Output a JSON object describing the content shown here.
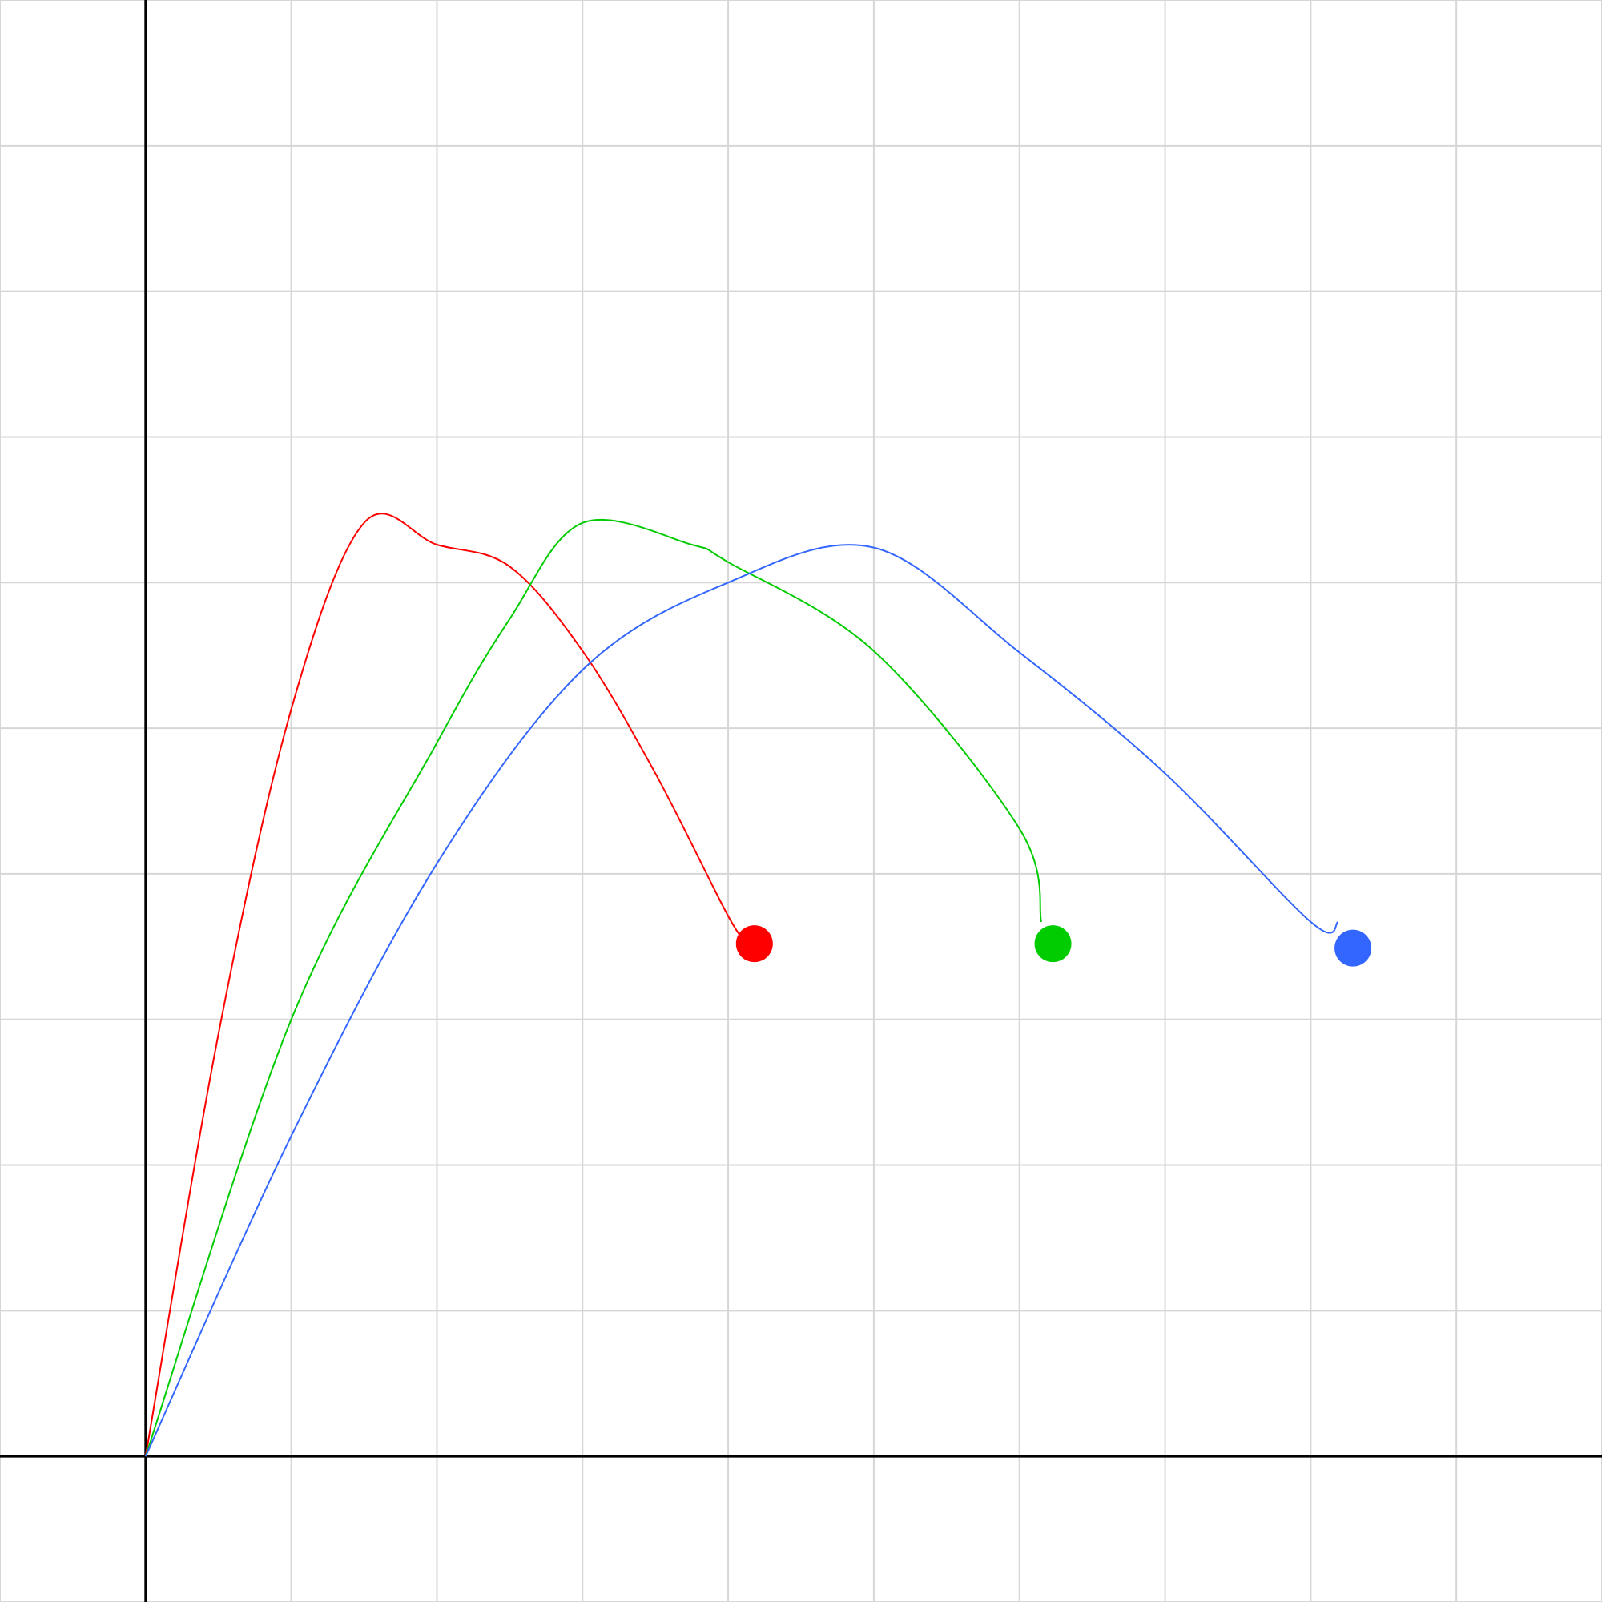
{
  "chart_data": {
    "type": "line",
    "title": "",
    "xlabel": "",
    "ylabel": "",
    "grid": true,
    "xlim": [
      -1,
      10
    ],
    "ylim": [
      -1,
      10
    ],
    "axis_color": "#000000",
    "grid_color": "#d6d6d6",
    "series": [
      {
        "color": "#ff0000",
        "x": [
          0,
          0.5,
          1,
          1.5,
          2,
          2.5,
          3,
          3.5,
          4,
          4.14
        ],
        "y": [
          0,
          2.9,
          5.13,
          6.41,
          6.26,
          6.11,
          5.53,
          4.69,
          3.71,
          3.52
        ],
        "end": {
          "x": 4.18,
          "y": 3.52
        }
      },
      {
        "color": "#00cc00",
        "x": [
          0,
          1,
          2,
          2.5,
          3,
          3.75,
          4,
          5,
          6,
          6.15
        ],
        "y": [
          0,
          3.0,
          4.9,
          5.75,
          6.41,
          6.26,
          6.14,
          5.53,
          4.31,
          3.67
        ],
        "end": {
          "x": 6.23,
          "y": 3.52
        }
      },
      {
        "color": "#3366ff",
        "x": [
          0,
          1,
          2,
          3,
          4,
          5,
          6,
          7,
          8,
          8.19
        ],
        "y": [
          0,
          2.2,
          4.07,
          5.4,
          6.0,
          6.24,
          5.52,
          4.69,
          3.67,
          3.67
        ],
        "end": {
          "x": 8.29,
          "y": 3.49
        }
      }
    ]
  }
}
